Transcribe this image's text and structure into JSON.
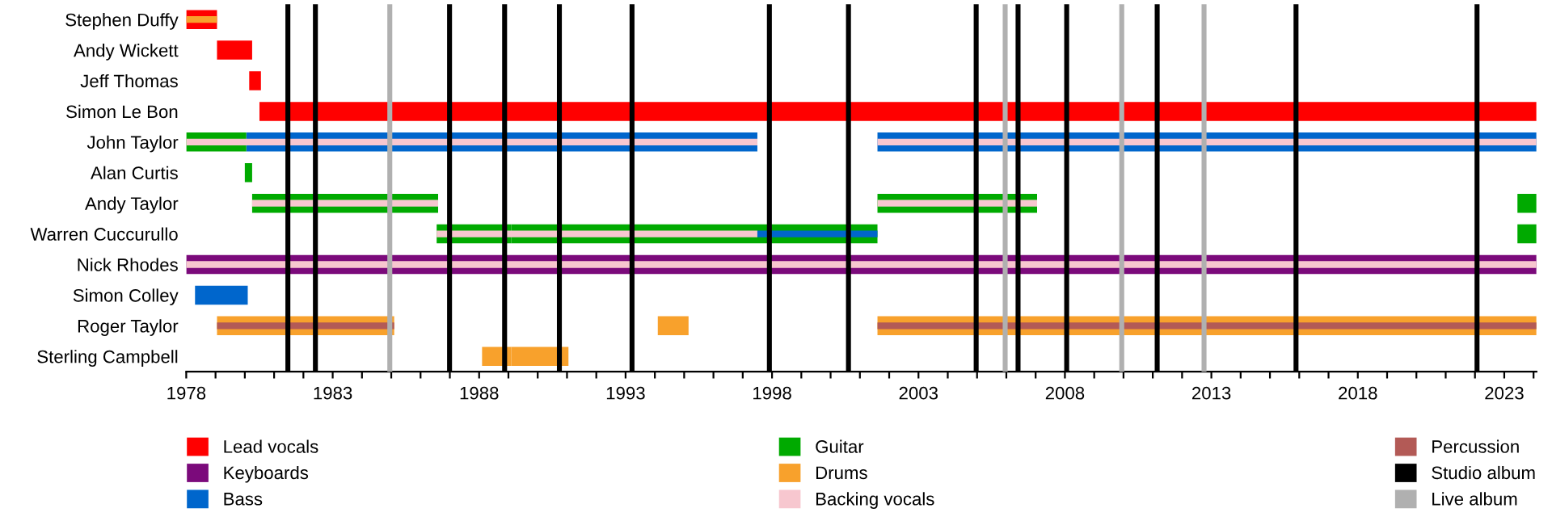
{
  "chart_data": {
    "type": "bar",
    "orientation": "horizontal",
    "categories": [
      "Stephen Duffy",
      "Andy Wickett",
      "Jeff Thomas",
      "Simon Le Bon",
      "John Taylor",
      "Alan Curtis",
      "Andy Taylor",
      "Warren Cuccurullo",
      "Nick Rhodes",
      "Simon Colley",
      "Roger Taylor",
      "Sterling Campbell"
    ],
    "series": [
      {
        "name": "Lead vocals",
        "color": "#ff0000",
        "values": [
          1.05,
          1.2,
          0.4,
          43.6,
          null,
          null,
          null,
          null,
          null,
          null,
          null,
          null
        ],
        "base": [
          1978,
          1979.05,
          1980.15,
          1980.5,
          null,
          null,
          null,
          null,
          null,
          null,
          null,
          null
        ]
      },
      {
        "name": "Keyboards",
        "color": "#7b0a7b",
        "values": [
          null,
          null,
          null,
          null,
          null,
          null,
          null,
          null,
          46.1,
          null,
          null,
          null
        ],
        "base": [
          null,
          null,
          null,
          null,
          null,
          null,
          null,
          null,
          1978,
          null,
          null,
          null
        ]
      },
      {
        "name": "Bass",
        "color": "#0066cc",
        "values": [
          null,
          null,
          null,
          null,
          17.45,
          null,
          null,
          null,
          null,
          1.8,
          null,
          null
        ],
        "base": [
          null,
          null,
          null,
          null,
          1980.05,
          null,
          null,
          null,
          null,
          1978.3,
          null,
          null
        ]
      },
      {
        "color": "#0066cc",
        "values": [
          null,
          null,
          null,
          null,
          22.5,
          null,
          null,
          null,
          null,
          null,
          null,
          null
        ],
        "base": [
          null,
          null,
          null,
          null,
          2001.6,
          null,
          null,
          null,
          null,
          null,
          null,
          null
        ]
      },
      {
        "name": "Guitar",
        "color": "#00aa00",
        "values": [
          null,
          null,
          null,
          null,
          2.05,
          0.25,
          6.35,
          12.5,
          null,
          null,
          null,
          null
        ],
        "base": [
          null,
          null,
          null,
          null,
          1978,
          1980,
          1980.25,
          1989.1,
          null,
          null,
          null,
          null
        ]
      },
      {
        "color": "#00aa00",
        "values": [
          null,
          null,
          null,
          null,
          null,
          null,
          5.45,
          0.65,
          null,
          null,
          null,
          null
        ],
        "base": [
          null,
          null,
          null,
          null,
          null,
          null,
          2001.6,
          2023.45,
          null,
          null,
          null,
          null
        ]
      },
      {
        "color": "#00aa00",
        "values": [
          null,
          null,
          null,
          null,
          null,
          null,
          0.65,
          2.55,
          null,
          null,
          null,
          null
        ],
        "base": [
          null,
          null,
          null,
          null,
          null,
          null,
          2023.45,
          1986.55,
          null,
          null,
          null,
          null
        ]
      },
      {
        "name": "Drums",
        "color": "#f8a12c",
        "values": [
          null,
          null,
          null,
          null,
          null,
          null,
          null,
          null,
          null,
          null,
          6.05,
          1.0
        ],
        "base": [
          null,
          null,
          null,
          null,
          null,
          null,
          null,
          null,
          null,
          null,
          1979.05,
          1988.1
        ]
      },
      {
        "color": "#f8a12c",
        "values": [
          null,
          null,
          null,
          null,
          null,
          null,
          null,
          null,
          null,
          null,
          1.05,
          1.95
        ],
        "base": [
          null,
          null,
          null,
          null,
          null,
          null,
          null,
          null,
          null,
          null,
          1994.1,
          1989.1
        ]
      },
      {
        "color": "#f8a12c",
        "values": [
          1.05,
          null,
          null,
          null,
          null,
          null,
          null,
          null,
          null,
          null,
          22.5,
          null
        ],
        "base": [
          1978,
          null,
          null,
          null,
          null,
          null,
          null,
          null,
          null,
          null,
          2001.6,
          null
        ]
      },
      {
        "name": "Backing vocals",
        "color": "#f7c7cf",
        "values": [
          null,
          null,
          null,
          null,
          19.5,
          null,
          6.35,
          10.95,
          46.1,
          null,
          null,
          null
        ],
        "base": [
          null,
          null,
          null,
          null,
          1978,
          null,
          1980.25,
          1986.55,
          1978,
          null,
          null,
          null
        ]
      },
      {
        "color": "#f7c7cf",
        "values": [
          null,
          null,
          null,
          null,
          22.5,
          null,
          5.45,
          null,
          null,
          null,
          null,
          null
        ],
        "base": [
          null,
          null,
          null,
          null,
          2001.6,
          null,
          2001.6,
          null,
          null,
          null,
          null,
          null
        ]
      },
      {
        "color": "#0066cc",
        "values": [
          null,
          null,
          null,
          null,
          null,
          null,
          null,
          4.1,
          null,
          null,
          null,
          null
        ],
        "base": [
          null,
          null,
          null,
          null,
          null,
          null,
          null,
          1997.5,
          null,
          null,
          null,
          null
        ]
      },
      {
        "name": "Percussion",
        "color": "#b35a56",
        "values": [
          null,
          null,
          null,
          null,
          null,
          null,
          null,
          null,
          null,
          null,
          6.05,
          null
        ],
        "base": [
          null,
          null,
          null,
          null,
          null,
          null,
          null,
          null,
          null,
          null,
          1979.05,
          null
        ]
      },
      {
        "color": "#b35a56",
        "values": [
          null,
          null,
          null,
          null,
          null,
          null,
          null,
          null,
          null,
          null,
          22.5,
          null
        ],
        "base": [
          null,
          null,
          null,
          null,
          null,
          null,
          null,
          null,
          null,
          null,
          2001.6,
          null
        ]
      }
    ],
    "ref_lines": [
      {
        "axis": "x",
        "value": 1981.47,
        "label": "Studio album",
        "color": "#000000"
      },
      {
        "axis": "x",
        "value": 1982.41,
        "color": "#000000"
      },
      {
        "axis": "x",
        "value": 1986.99,
        "color": "#000000"
      },
      {
        "axis": "x",
        "value": 1988.87,
        "color": "#000000"
      },
      {
        "axis": "x",
        "value": 1990.74,
        "color": "#000000"
      },
      {
        "axis": "x",
        "value": 1993.22,
        "color": "#000000"
      },
      {
        "axis": "x",
        "value": 1997.91,
        "color": "#000000"
      },
      {
        "axis": "x",
        "value": 2000.61,
        "color": "#000000"
      },
      {
        "axis": "x",
        "value": 2004.97,
        "color": "#000000"
      },
      {
        "axis": "x",
        "value": 2006.4,
        "color": "#000000"
      },
      {
        "axis": "x",
        "value": 2008.06,
        "color": "#000000"
      },
      {
        "axis": "x",
        "value": 2011.15,
        "color": "#000000"
      },
      {
        "axis": "x",
        "value": 2015.89,
        "color": "#000000"
      },
      {
        "axis": "x",
        "value": 2022.07,
        "color": "#000000"
      },
      {
        "axis": "x",
        "value": 1984.95,
        "label": "Live album",
        "color": "#b0b0b0"
      },
      {
        "axis": "x",
        "value": 2005.96,
        "color": "#b0b0b0"
      },
      {
        "axis": "x",
        "value": 2009.94,
        "color": "#b0b0b0"
      },
      {
        "axis": "x",
        "value": 2012.75,
        "color": "#b0b0b0"
      }
    ],
    "xlim": [
      1978,
      2024.1
    ],
    "xticks": [
      1978,
      {
        "value": 1979,
        "label": null
      },
      {
        "value": 1980,
        "label": null
      },
      {
        "value": 1981,
        "label": null
      },
      {
        "value": 1982,
        "label": null
      },
      1983,
      {
        "value": 1984,
        "label": null
      },
      {
        "value": 1985,
        "label": null
      },
      {
        "value": 1986,
        "label": null
      },
      {
        "value": 1987,
        "label": null
      },
      1988,
      {
        "value": 1989,
        "label": null
      },
      {
        "value": 1990,
        "label": null
      },
      {
        "value": 1991,
        "label": null
      },
      {
        "value": 1992,
        "label": null
      },
      1993,
      {
        "value": 1994,
        "label": null
      },
      {
        "value": 1995,
        "label": null
      },
      {
        "value": 1996,
        "label": null
      },
      {
        "value": 1997,
        "label": null
      },
      1998,
      {
        "value": 1999,
        "label": null
      },
      {
        "value": 2000,
        "label": null
      },
      {
        "value": 2001,
        "label": null
      },
      {
        "value": 2002,
        "label": null
      },
      2003,
      {
        "value": 2004,
        "label": null
      },
      {
        "value": 2005,
        "label": null
      },
      {
        "value": 2006,
        "label": null
      },
      {
        "value": 2007,
        "label": null
      },
      2008,
      {
        "value": 2009,
        "label": null
      },
      {
        "value": 2010,
        "label": null
      },
      {
        "value": 2011,
        "label": null
      },
      {
        "value": 2012,
        "label": null
      },
      2013,
      {
        "value": 2014,
        "label": null
      },
      {
        "value": 2015,
        "label": null
      },
      {
        "value": 2016,
        "label": null
      },
      {
        "value": 2017,
        "label": null
      },
      2018,
      {
        "value": 2019,
        "label": null
      },
      {
        "value": 2020,
        "label": null
      },
      {
        "value": 2021,
        "label": null
      },
      {
        "value": 2022,
        "label": null
      },
      2023,
      {
        "value": 2024,
        "label": null
      }
    ],
    "legend": "bottom"
  }
}
